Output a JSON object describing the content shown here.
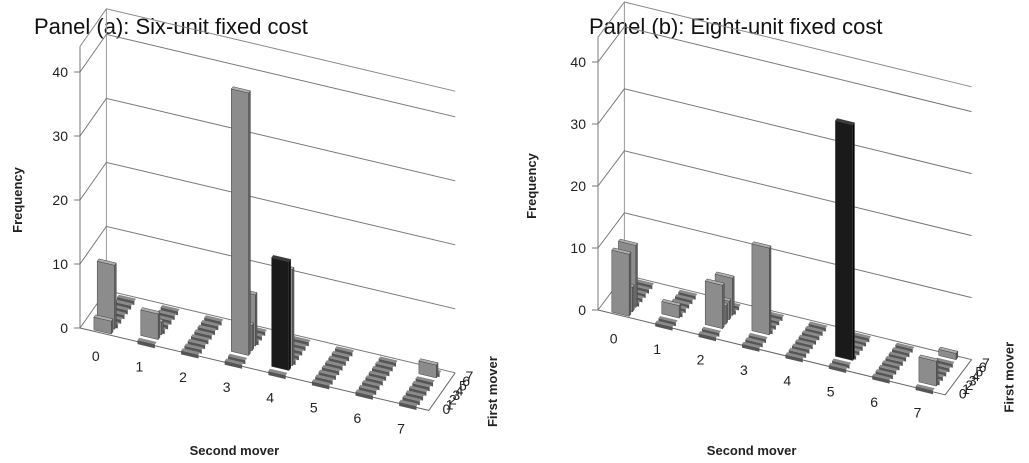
{
  "chart_data": [
    {
      "type": "bar3d",
      "title": "Panel (a): Six-unit fixed cost",
      "xlabel": "Second mover",
      "ylabel": "First mover",
      "zlabel": "Frequency",
      "x_categories": [
        "0",
        "1",
        "2",
        "3",
        "4",
        "5",
        "6",
        "7"
      ],
      "y_categories": [
        "0",
        "1",
        "2",
        "3",
        "4",
        "5",
        "6",
        "7"
      ],
      "zticks": [
        "0",
        "10",
        "20",
        "30",
        "40"
      ],
      "zlim": [
        0,
        40
      ],
      "highlight_color": "#111111",
      "bar_color": "#8c8c8c",
      "bars": [
        {
          "x": 0,
          "y": 0,
          "value": 2
        },
        {
          "x": 0,
          "y": 1,
          "value": 10
        },
        {
          "x": 1,
          "y": 1,
          "value": 4
        },
        {
          "x": 1,
          "y": 2,
          "value": 2
        },
        {
          "x": 3,
          "y": 2,
          "value": 41
        },
        {
          "x": 3,
          "y": 3,
          "value": 4
        },
        {
          "x": 3,
          "y": 4,
          "value": 8
        },
        {
          "x": 4,
          "y": 2,
          "value": 15
        },
        {
          "x": 4,
          "y": 1,
          "value": 17,
          "highlight": true
        },
        {
          "x": 7,
          "y": 6,
          "value": 2
        }
      ]
    },
    {
      "type": "bar3d",
      "title": "Panel (b): Eight-unit fixed cost",
      "xlabel": "Second mover",
      "ylabel": "First mover",
      "zlabel": "Frequency",
      "x_categories": [
        "0",
        "1",
        "2",
        "3",
        "4",
        "5",
        "6",
        "7"
      ],
      "y_categories": [
        "0",
        "1",
        "2",
        "3",
        "4",
        "5",
        "6",
        "7"
      ],
      "zticks": [
        "0",
        "10",
        "20",
        "30",
        "40"
      ],
      "zlim": [
        0,
        40
      ],
      "highlight_color": "#111111",
      "bar_color": "#8c8c8c",
      "bars": [
        {
          "x": 0,
          "y": 0,
          "value": 10
        },
        {
          "x": 0,
          "y": 1,
          "value": 4
        },
        {
          "x": 0,
          "y": 2,
          "value": 10
        },
        {
          "x": 1,
          "y": 2,
          "value": 2
        },
        {
          "x": 2,
          "y": 3,
          "value": 3
        },
        {
          "x": 2,
          "y": 4,
          "value": 3
        },
        {
          "x": 2,
          "y": 5,
          "value": 6
        },
        {
          "x": 2,
          "y": 2,
          "value": 7
        },
        {
          "x": 3,
          "y": 3,
          "value": 14
        },
        {
          "x": 5,
          "y": 2,
          "value": 38,
          "highlight": true
        },
        {
          "x": 7,
          "y": 1,
          "value": 4
        },
        {
          "x": 7,
          "y": 7,
          "value": 1
        }
      ]
    }
  ]
}
